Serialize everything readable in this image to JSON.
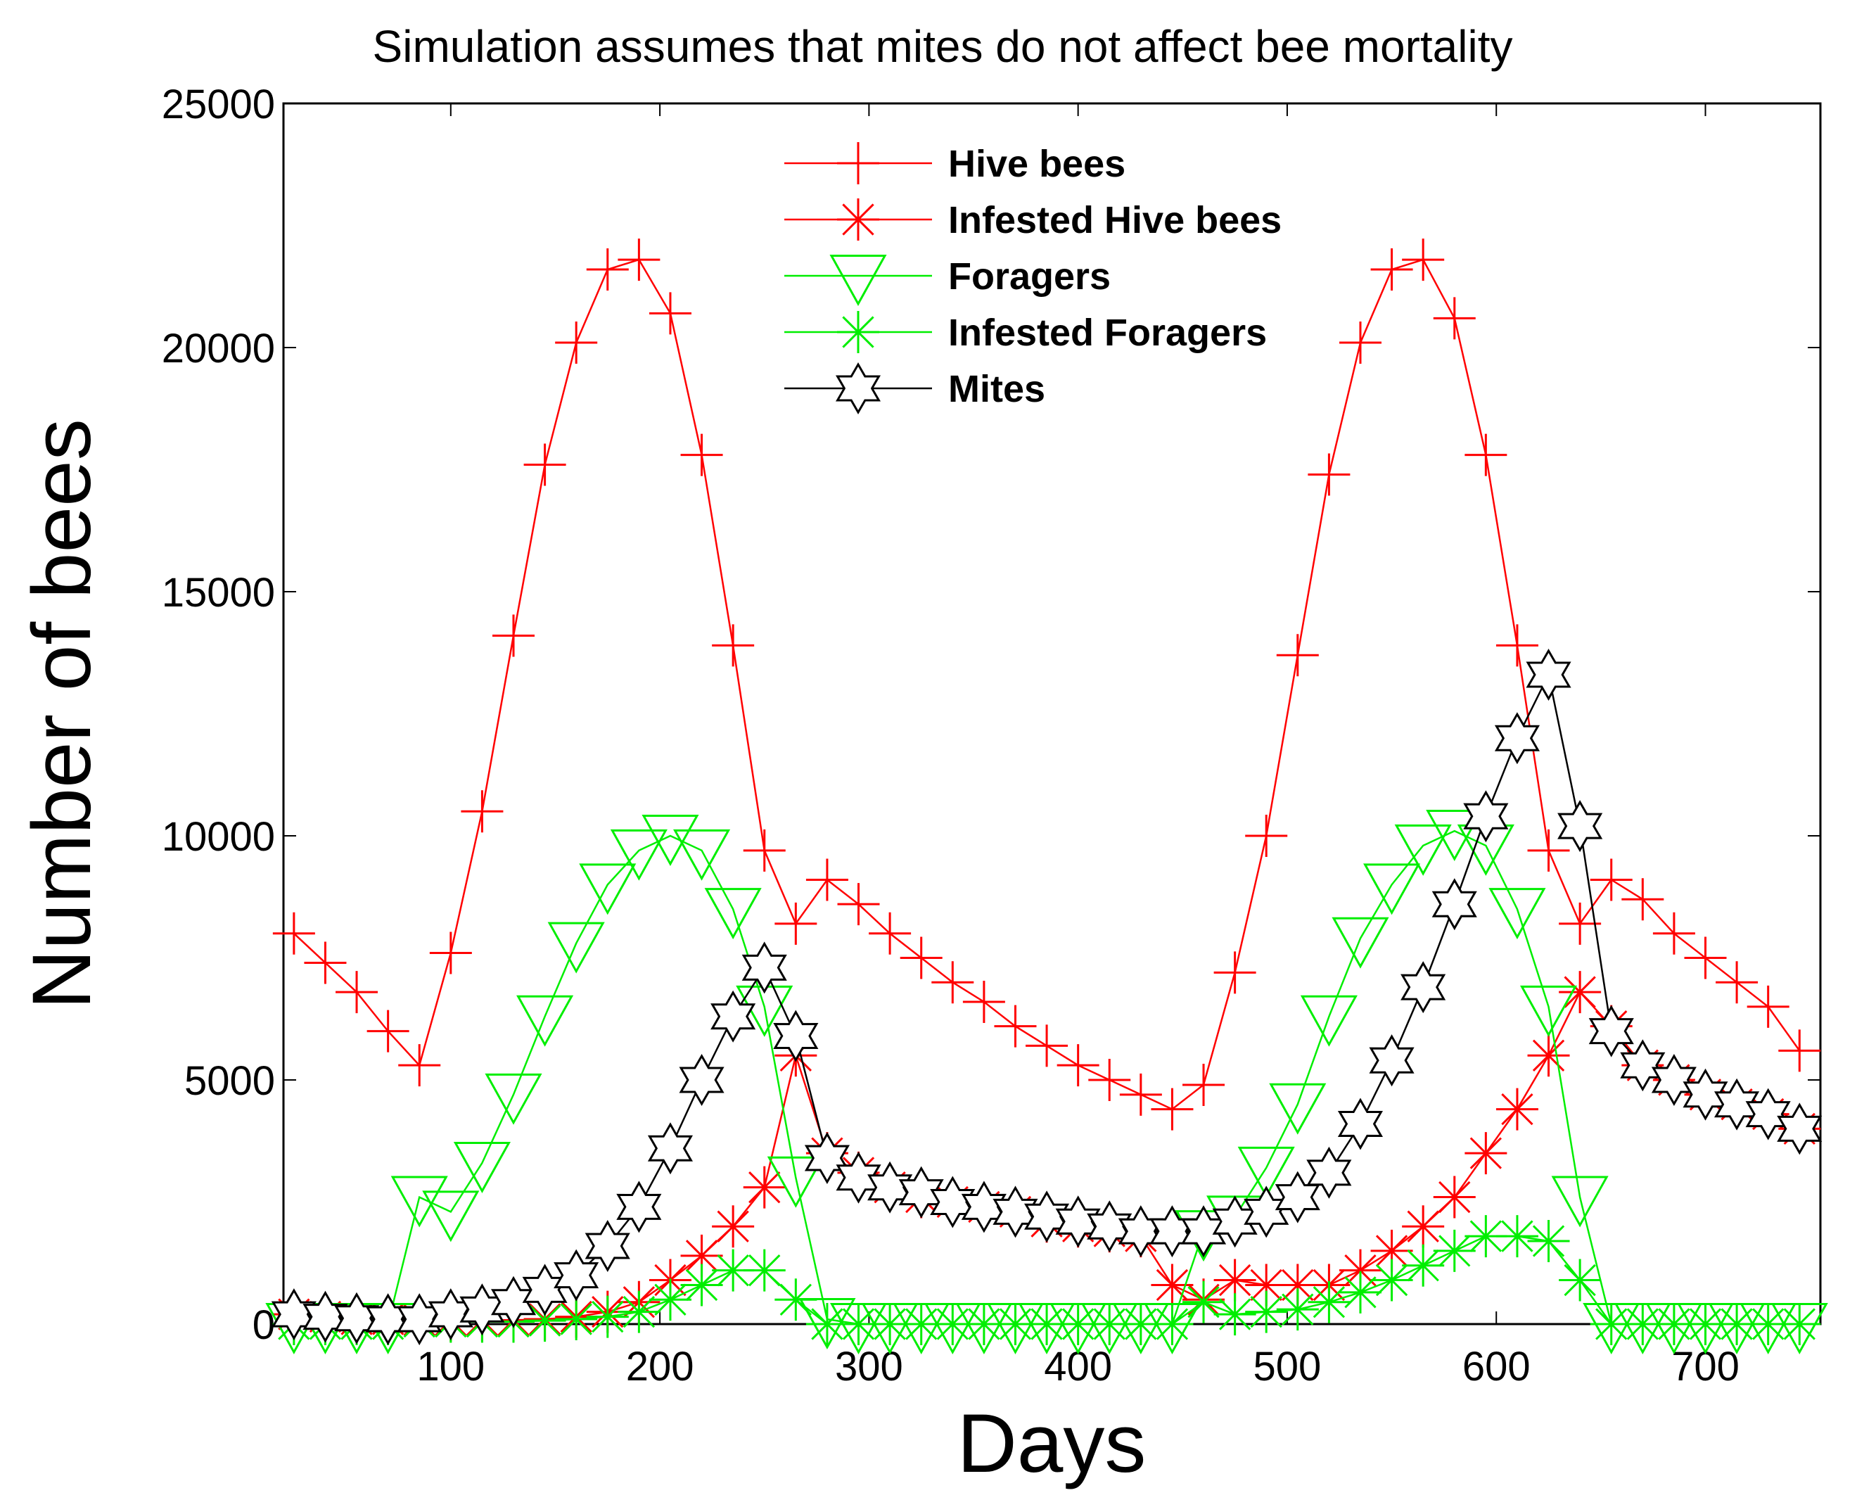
{
  "chart_data": {
    "type": "line",
    "title": "Simulation assumes that mites do not affect bee mortality",
    "xlabel": "Days",
    "ylabel": "Number of bees",
    "xlim": [
      20,
      755
    ],
    "ylim": [
      0,
      25000
    ],
    "xticks": [
      100,
      200,
      300,
      400,
      500,
      600,
      700
    ],
    "yticks": [
      0,
      5000,
      10000,
      15000,
      20000,
      25000
    ],
    "grid": false,
    "legend_position": "top-center",
    "x": [
      25,
      40,
      55,
      70,
      85,
      100,
      115,
      130,
      145,
      160,
      175,
      190,
      205,
      220,
      235,
      250,
      265,
      280,
      295,
      310,
      325,
      340,
      355,
      370,
      385,
      400,
      415,
      430,
      445,
      460,
      475,
      490,
      505,
      520,
      535,
      550,
      565,
      580,
      595,
      610,
      625,
      640,
      655,
      670,
      685,
      700,
      715,
      730,
      745
    ],
    "series": [
      {
        "name": "Hive bees",
        "color": "#ff0000",
        "marker": "plus",
        "values": [
          8000,
          7400,
          6800,
          6000,
          5300,
          7600,
          10500,
          14100,
          17600,
          20100,
          21600,
          21800,
          20700,
          17800,
          13900,
          9700,
          8200,
          9100,
          8600,
          8000,
          7500,
          7000,
          6600,
          6100,
          5700,
          5300,
          5000,
          4700,
          4400,
          4900,
          7200,
          10000,
          13700,
          17400,
          20100,
          21600,
          21800,
          20600,
          17800,
          13900,
          9700,
          8200,
          9100,
          8700,
          8000,
          7500,
          7000,
          6500,
          5600
        ]
      },
      {
        "name": "Infested Hive bees",
        "color": "#ff0000",
        "marker": "asterisk",
        "values": [
          200,
          150,
          100,
          100,
          80,
          80,
          80,
          80,
          100,
          150,
          250,
          450,
          900,
          1400,
          2000,
          2800,
          5500,
          3500,
          3100,
          2800,
          2600,
          2500,
          2400,
          2300,
          2100,
          2000,
          1900,
          1800,
          800,
          500,
          900,
          800,
          800,
          800,
          1100,
          1500,
          2000,
          2600,
          3500,
          4400,
          5500,
          6800,
          6100,
          5300,
          5000,
          4700,
          4500,
          4300,
          4000
        ]
      },
      {
        "name": "Foragers",
        "color": "#00ee00",
        "marker": "triangle-down",
        "values": [
          0,
          0,
          0,
          0,
          2600,
          2300,
          3300,
          4700,
          6300,
          7800,
          9000,
          9700,
          10000,
          9700,
          8500,
          6500,
          3000,
          100,
          0,
          0,
          0,
          0,
          0,
          0,
          0,
          0,
          0,
          0,
          0,
          1900,
          2200,
          3200,
          4500,
          6300,
          7900,
          9000,
          9800,
          10100,
          9800,
          8500,
          6500,
          2600,
          0,
          0,
          0,
          0,
          0,
          0,
          0
        ]
      },
      {
        "name": "Infested Foragers",
        "color": "#00ee00",
        "marker": "asterisk",
        "values": [
          0,
          0,
          0,
          0,
          50,
          50,
          50,
          50,
          70,
          100,
          150,
          250,
          500,
          800,
          1100,
          1100,
          500,
          0,
          0,
          0,
          0,
          0,
          0,
          0,
          0,
          0,
          0,
          0,
          0,
          450,
          200,
          250,
          300,
          450,
          650,
          900,
          1200,
          1500,
          1800,
          1800,
          1700,
          900,
          0,
          0,
          0,
          0,
          0,
          0,
          0
        ]
      },
      {
        "name": "Mites",
        "color": "#000000",
        "marker": "hexagram",
        "values": [
          200,
          150,
          120,
          100,
          100,
          200,
          300,
          450,
          700,
          1000,
          1600,
          2400,
          3600,
          5000,
          6300,
          7300,
          5900,
          3400,
          3000,
          2800,
          2700,
          2500,
          2400,
          2300,
          2200,
          2100,
          2000,
          1900,
          1900,
          1900,
          2100,
          2300,
          2600,
          3100,
          4100,
          5400,
          6900,
          8600,
          10400,
          12000,
          13300,
          10200,
          6000,
          5300,
          5000,
          4700,
          4500,
          4300,
          4000
        ]
      }
    ]
  }
}
